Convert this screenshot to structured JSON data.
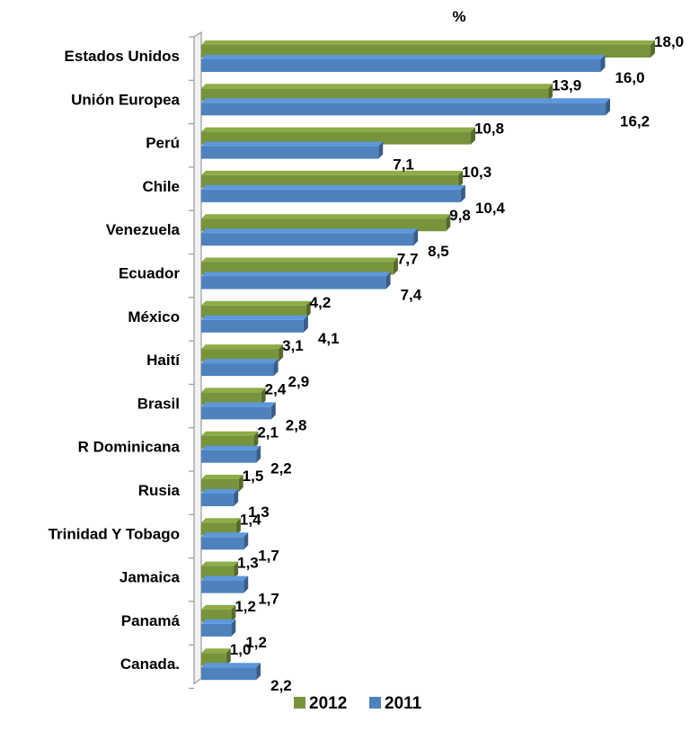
{
  "chart_data": {
    "type": "bar",
    "orientation": "horizontal",
    "unit_label": "%",
    "categories": [
      "Estados Unidos",
      "Unión Europea",
      "Perú",
      "Chile",
      "Venezuela",
      "Ecuador",
      "México",
      "Haití",
      "Brasil",
      "R Dominicana",
      "Rusia",
      "Trinidad Y Tobago",
      "Jamaica",
      "Panamá",
      "Canada."
    ],
    "series": [
      {
        "name": "2012",
        "color": "#77933C",
        "values": [
          18.0,
          13.9,
          10.8,
          10.3,
          9.8,
          7.7,
          4.2,
          3.1,
          2.4,
          2.1,
          1.5,
          1.4,
          1.3,
          1.2,
          1.0
        ],
        "labels": [
          "18,0",
          "13,9",
          "10,8",
          "10,3",
          "9,8",
          "7,7",
          "4,2",
          "3,1",
          "2,4",
          "2,1",
          "1,5",
          "1,4",
          "1,3",
          "1,2",
          "1,0"
        ]
      },
      {
        "name": "2011",
        "color": "#4F81BD",
        "values": [
          16.0,
          16.2,
          7.1,
          10.4,
          8.5,
          7.4,
          4.1,
          2.9,
          2.8,
          2.2,
          1.3,
          1.7,
          1.7,
          1.2,
          2.2
        ],
        "labels": [
          "16,0",
          "16,2",
          "7,1",
          "10,4",
          "8,5",
          "7,4",
          "4,1",
          "2,9",
          "2,8",
          "2,2",
          "1,3",
          "1,7",
          "1,7",
          "1,2",
          "2,2"
        ]
      }
    ],
    "xlim": [
      0,
      18
    ],
    "grid": false,
    "legend_position": "bottom"
  }
}
